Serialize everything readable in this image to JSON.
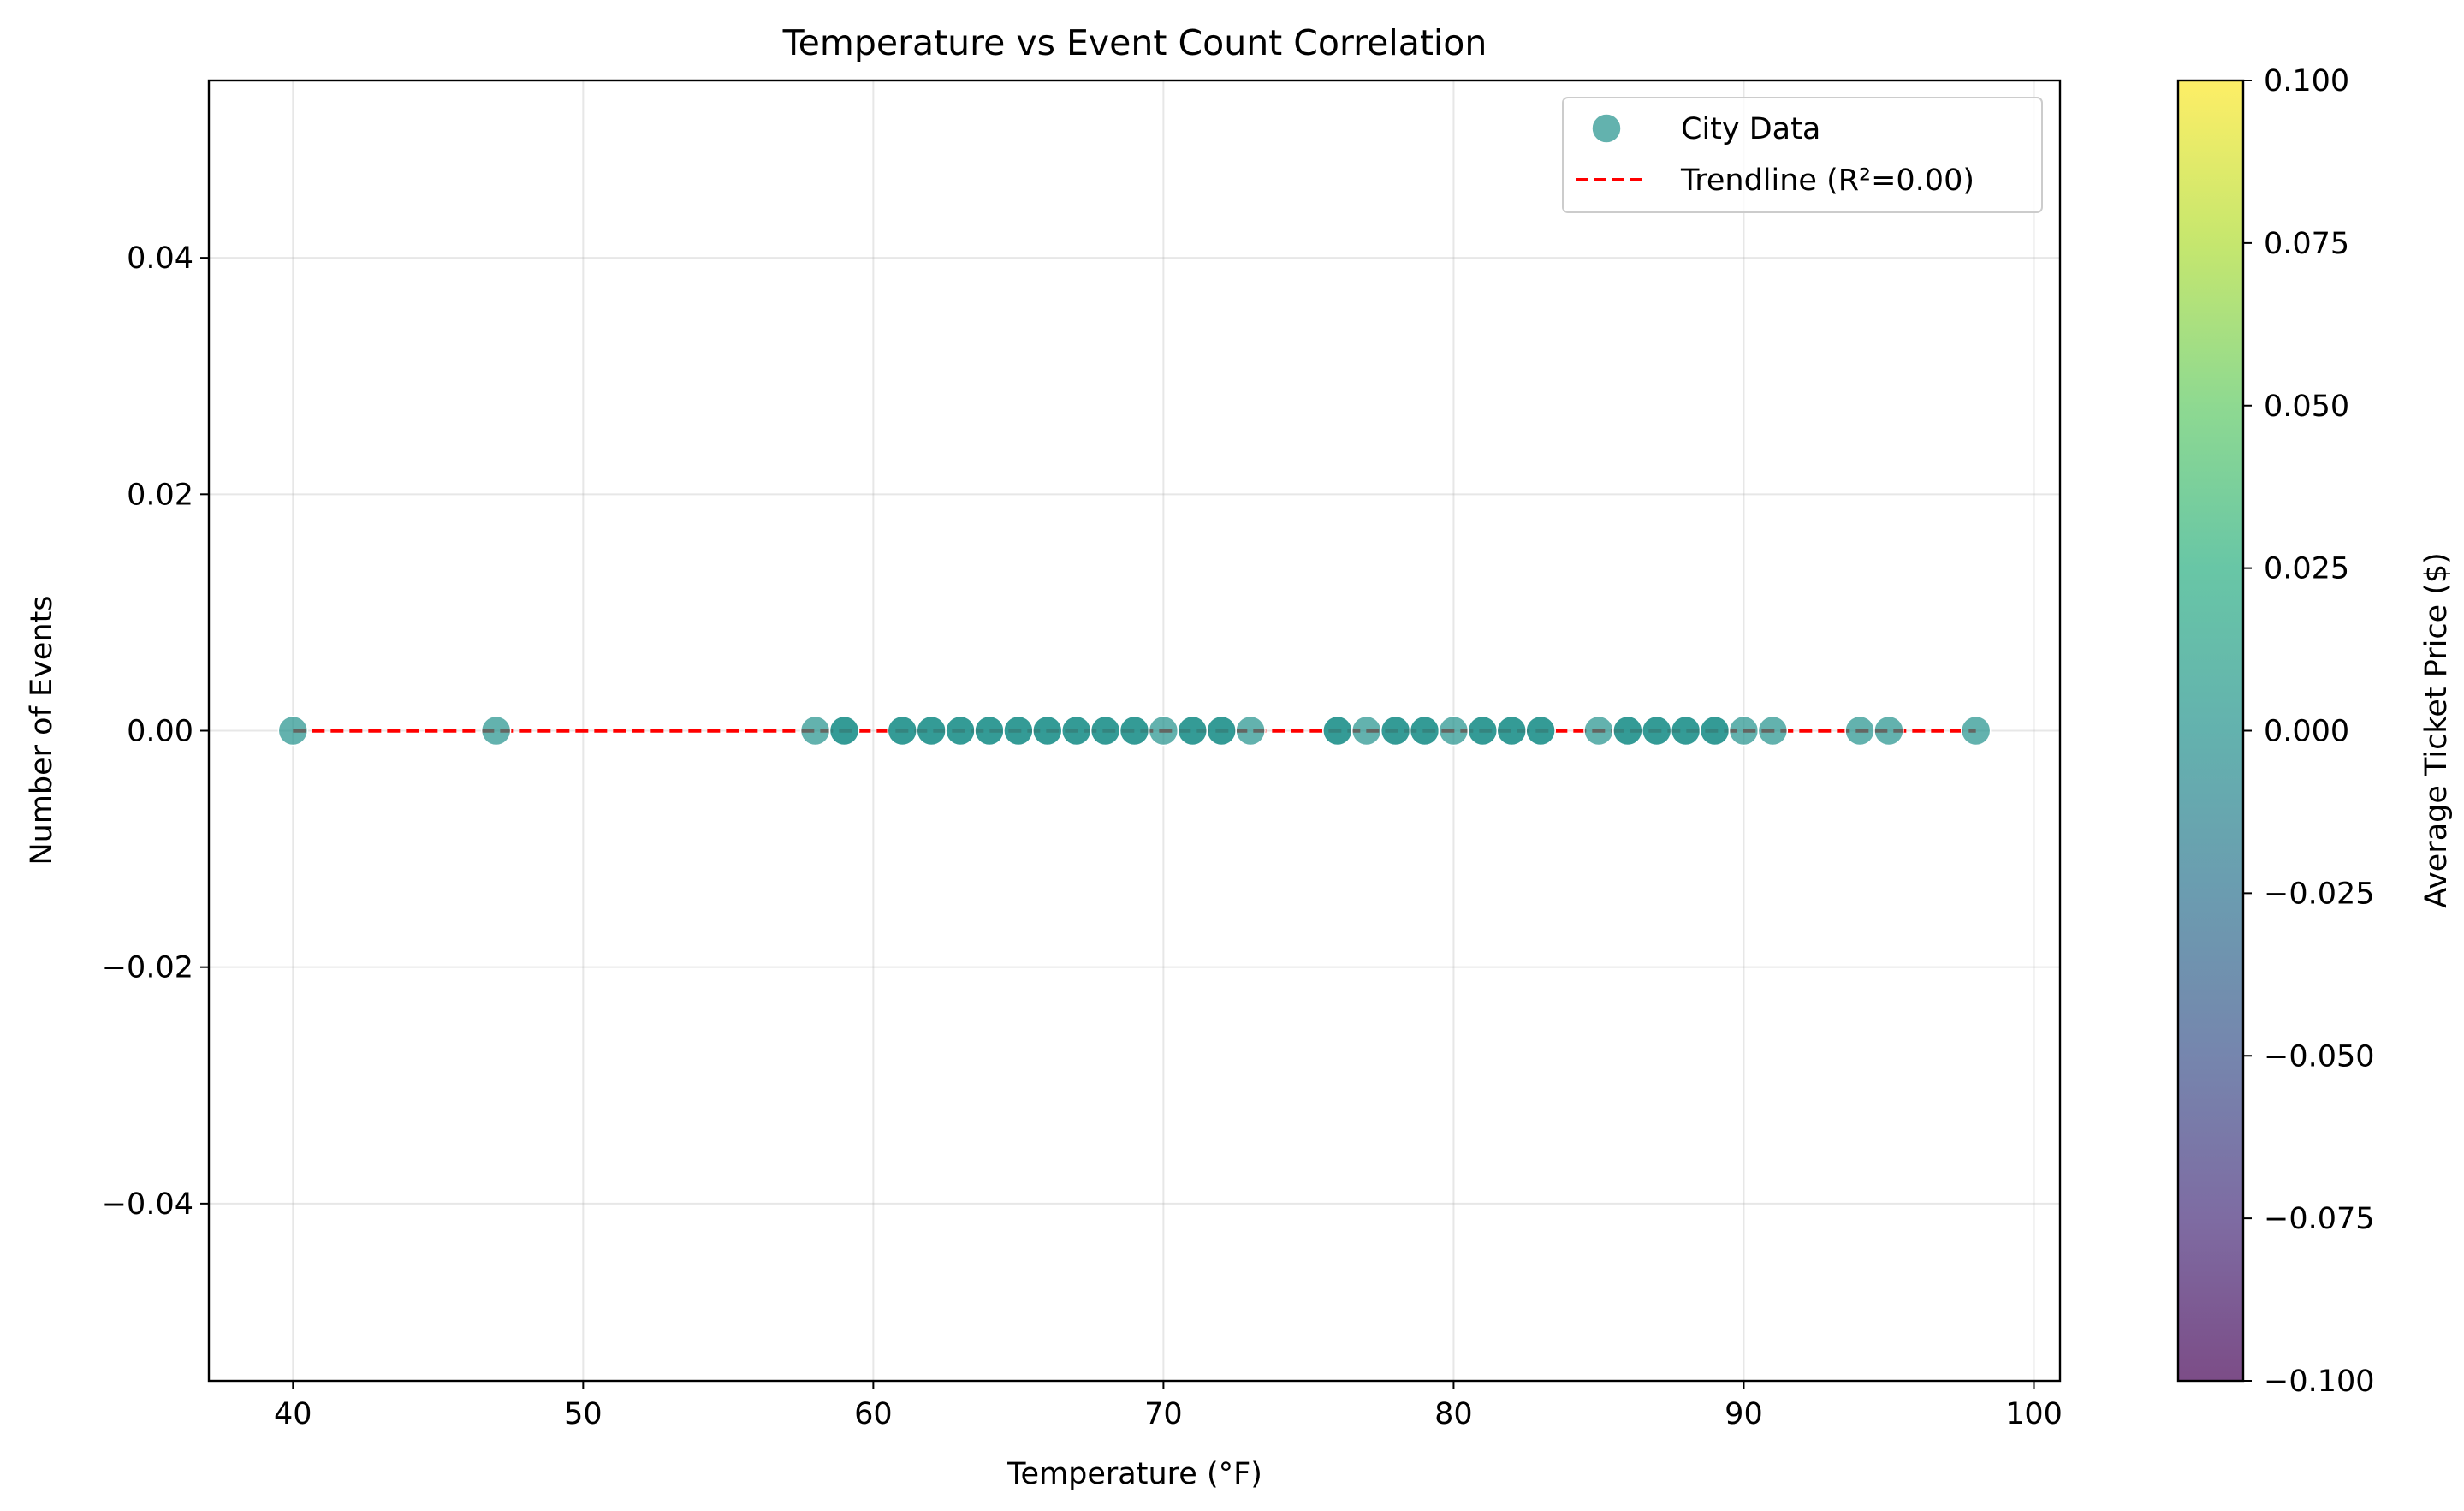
{
  "chart_data": {
    "type": "scatter",
    "title": "Temperature vs Event Count Correlation",
    "xlabel": "Temperature (°F)",
    "ylabel": "Number of Events",
    "xlim": [
      37.1,
      100.9
    ],
    "ylim": [
      -0.055,
      0.055
    ],
    "xticks": [
      40,
      50,
      60,
      70,
      80,
      90,
      100
    ],
    "xtick_labels": [
      "40",
      "50",
      "60",
      "70",
      "80",
      "90",
      "100"
    ],
    "yticks": [
      -0.04,
      -0.02,
      0.0,
      0.02,
      0.04
    ],
    "ytick_labels": [
      "−0.04",
      "−0.02",
      "0.00",
      "0.02",
      "0.04"
    ],
    "grid": true,
    "legend_position": "top-right",
    "series": [
      {
        "name": "City Data",
        "kind": "scatter",
        "color": "#21918c",
        "alpha": 0.7,
        "x": [
          40,
          47,
          58,
          59,
          59,
          61,
          61,
          62,
          62,
          63,
          63,
          64,
          64,
          65,
          65,
          66,
          66,
          67,
          67,
          68,
          68,
          69,
          69,
          70,
          71,
          71,
          72,
          72,
          73,
          76,
          76,
          77,
          78,
          78,
          79,
          79,
          80,
          81,
          81,
          82,
          82,
          83,
          83,
          85,
          86,
          86,
          87,
          87,
          88,
          88,
          89,
          89,
          90,
          91,
          94,
          95,
          98
        ],
        "y": [
          0,
          0,
          0,
          0,
          0,
          0,
          0,
          0,
          0,
          0,
          0,
          0,
          0,
          0,
          0,
          0,
          0,
          0,
          0,
          0,
          0,
          0,
          0,
          0,
          0,
          0,
          0,
          0,
          0,
          0,
          0,
          0,
          0,
          0,
          0,
          0,
          0,
          0,
          0,
          0,
          0,
          0,
          0,
          0,
          0,
          0,
          0,
          0,
          0,
          0,
          0,
          0,
          0,
          0,
          0,
          0,
          0
        ],
        "color_value": 0.0
      },
      {
        "name": "Trendline (R²=0.00)",
        "kind": "line",
        "style": "dashed",
        "color": "#ff0000",
        "x": [
          40,
          98
        ],
        "y": [
          0.0,
          0.0
        ]
      }
    ],
    "colorbar": {
      "label": "Average Ticket Price ($)",
      "colormap": "viridis",
      "range": [
        -0.1,
        0.1
      ],
      "ticks": [
        -0.1,
        -0.075,
        -0.05,
        -0.025,
        0.0,
        0.025,
        0.05,
        0.075,
        0.1
      ],
      "tick_labels": [
        "−0.100",
        "−0.075",
        "−0.050",
        "−0.025",
        "0.000",
        "0.025",
        "0.050",
        "0.075",
        "0.100"
      ],
      "alpha": 0.7
    }
  }
}
